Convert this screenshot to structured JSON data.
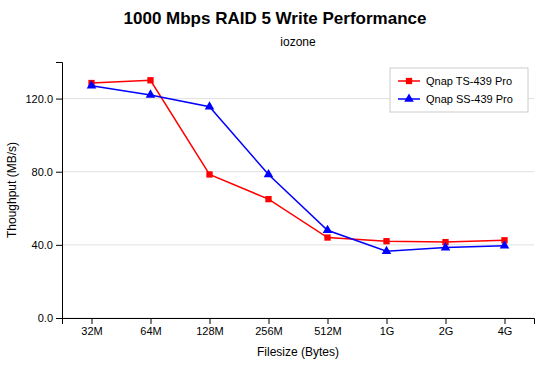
{
  "chart_data": {
    "type": "line",
    "title": "1000 Mbps RAID 5 Write Performance",
    "subtitle": "iozone",
    "xlabel": "Filesize (Bytes)",
    "ylabel": "Thoughput (MB/s)",
    "categories": [
      "32M",
      "64M",
      "128M",
      "256M",
      "512M",
      "1G",
      "2G",
      "4G"
    ],
    "series": [
      {
        "name": "Qnap TS-439 Pro",
        "color": "#ff0000",
        "marker": "square",
        "values": [
          128.5,
          130.0,
          78.5,
          65.0,
          44.0,
          42.0,
          41.5,
          42.5
        ]
      },
      {
        "name": "Qnap SS-439 Pro",
        "color": "#0000ff",
        "marker": "triangle",
        "values": [
          127.0,
          122.0,
          115.5,
          78.5,
          48.0,
          36.5,
          38.5,
          39.5
        ]
      }
    ],
    "ylim": [
      0,
      140
    ],
    "yticks": [
      {
        "value": 0,
        "label": "0.0"
      },
      {
        "value": 40,
        "label": "40.0"
      },
      {
        "value": 80,
        "label": "80.0"
      },
      {
        "value": 120,
        "label": "120.0"
      }
    ],
    "grid": true,
    "legend": "top-right"
  }
}
